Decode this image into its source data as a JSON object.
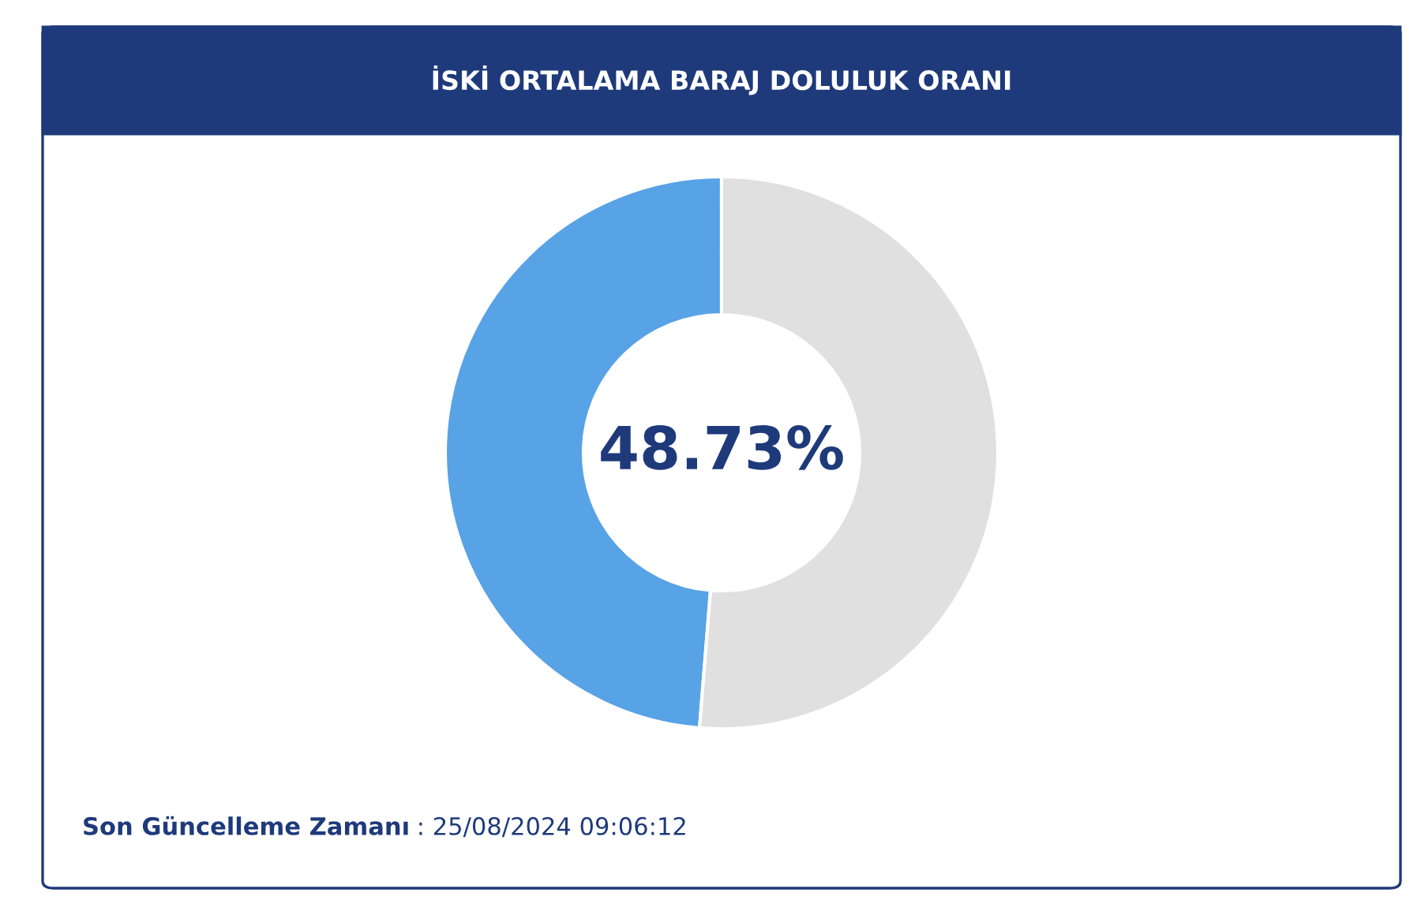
{
  "chart_data": {
    "type": "donut",
    "title": "İSKİ ORTALAMA BARAJ DOLULUK ORANI",
    "categories": [
      null,
      null
    ],
    "values": [
      48.73,
      51.27
    ],
    "colors": [
      "#58a2e6",
      "#e0e0e0"
    ],
    "value_labels": [
      "48.73%",
      null
    ],
    "annotations": [
      "Son Güncelleme Zamanı",
      ": 25/08/2024 09:06:12"
    ]
  }
}
